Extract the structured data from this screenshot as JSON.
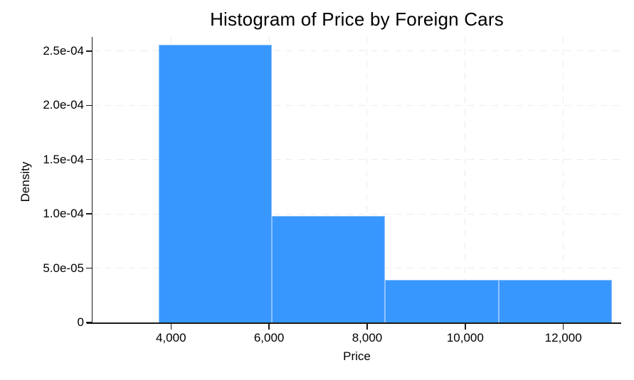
{
  "chart_data": {
    "type": "bar",
    "variant": "histogram",
    "title": "Histogram of Price by Foreign Cars",
    "xlabel": "Price",
    "ylabel": "Density",
    "bins": [
      {
        "start": 3748,
        "end": 6058.5,
        "density": 0.0002557
      },
      {
        "start": 6058.5,
        "end": 8369,
        "density": 9.836e-05
      },
      {
        "start": 8369,
        "end": 10679.5,
        "density": 3.935e-05
      },
      {
        "start": 10679.5,
        "end": 12990,
        "density": 3.935e-05
      }
    ],
    "x_ticks": [
      {
        "value": 4000,
        "label": "4,000"
      },
      {
        "value": 6000,
        "label": "6,000"
      },
      {
        "value": 8000,
        "label": "8,000"
      },
      {
        "value": 10000,
        "label": "10,000"
      },
      {
        "value": 12000,
        "label": "12,000"
      }
    ],
    "y_ticks": [
      {
        "value": 0,
        "label": "0"
      },
      {
        "value": 5e-05,
        "label": "5.0e-05"
      },
      {
        "value": 0.0001,
        "label": "1.0e-04"
      },
      {
        "value": 0.00015,
        "label": "1.5e-04"
      },
      {
        "value": 0.0002,
        "label": "2.0e-04"
      },
      {
        "value": 0.00025,
        "label": "2.5e-04"
      }
    ],
    "x_range": [
      2400,
      13180
    ],
    "y_range": [
      0,
      0.000263
    ],
    "grid": "dashed",
    "legend": "none",
    "colors": {
      "bar_fill": "#3897FE",
      "bar_edge": "#8FC2FF",
      "grid": "#ECECEC",
      "axis": "#1A1A1A",
      "text": "#000000",
      "background": "#FFFFFF"
    }
  }
}
